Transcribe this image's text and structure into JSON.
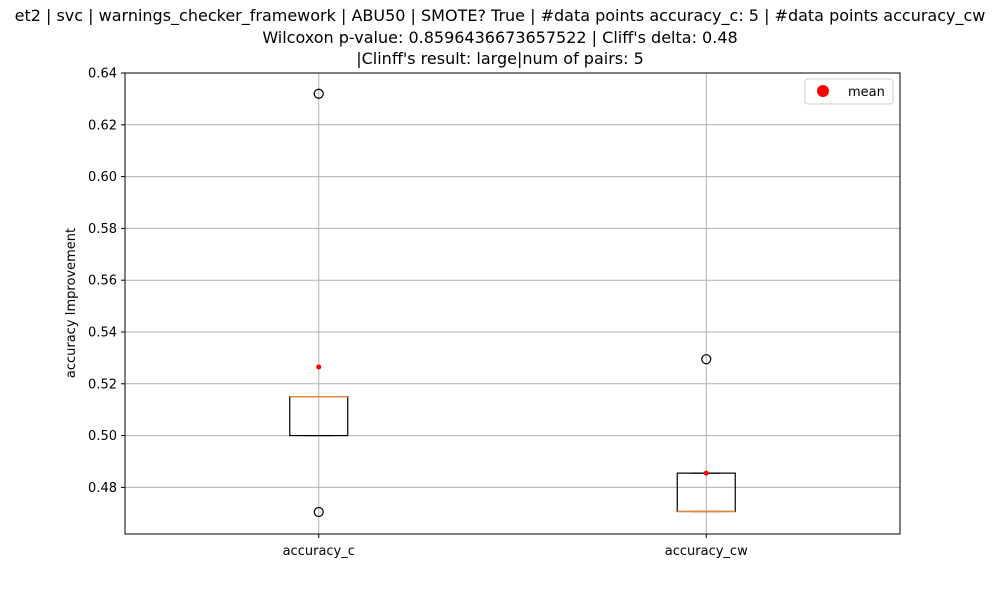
{
  "title_lines": [
    "et2 | svc | warnings_checker_framework | ABU50 | SMOTE? True | #data points accuracy_c: 5 | #data points accuracy_cw",
    "Wilcoxon p-value: 0.8596436673657522 | Cliff's delta: 0.48",
    "|Clinff's result: large|num of pairs: 5"
  ],
  "chart_data": {
    "type": "box",
    "title": "et2 | svc | warnings_checker_framework | ABU50 | SMOTE? True | #data points accuracy_c: 5 | #data points accuracy_cw",
    "xlabel": "",
    "ylabel": "accuracy Improvement",
    "categories": [
      "accuracy_c",
      "accuracy_cw"
    ],
    "ylim": [
      0.462,
      0.64
    ],
    "yticks": [
      0.48,
      0.5,
      0.52,
      0.54,
      0.56,
      0.58,
      0.6,
      0.62,
      0.64
    ],
    "grid": true,
    "legend": {
      "placement": "top-right",
      "entries": [
        "mean"
      ]
    },
    "boxes": [
      {
        "name": "accuracy_c",
        "q1": 0.5,
        "median": 0.515,
        "q3": 0.515,
        "whisker_low": 0.5,
        "whisker_high": 0.515,
        "mean": 0.5265,
        "fliers": [
          0.632,
          0.4705
        ]
      },
      {
        "name": "accuracy_cw",
        "q1": 0.4707,
        "median": 0.4707,
        "q3": 0.4855,
        "whisker_low": 0.4707,
        "whisker_high": 0.4855,
        "mean": 0.4855,
        "fliers": [
          0.5295
        ]
      }
    ],
    "colors": {
      "box": "#000000",
      "median": "#e08a3c",
      "mean": "#ff0000",
      "flier": "#000000",
      "grid": "#b0b0b0"
    }
  }
}
